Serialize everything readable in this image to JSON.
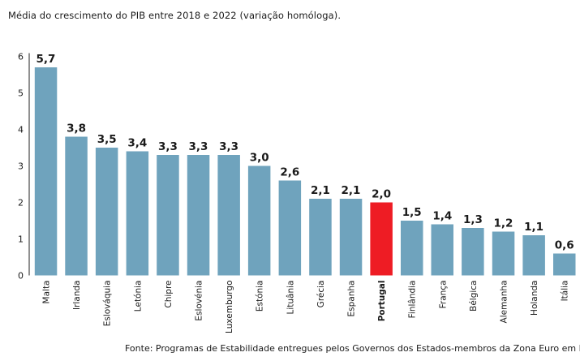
{
  "chart_data": {
    "type": "bar",
    "title": "Média do crescimento do PIB entre 2018 e 2022 (variação homóloga).",
    "categories": [
      "Malta",
      "Irlanda",
      "Eslováquia",
      "Letónia",
      "Chipre",
      "Eslovénia",
      "Luxemburgo",
      "Estónia",
      "Lituânia",
      "Grécia",
      "Espanha",
      "Portugal",
      "Finlândia",
      "França",
      "Bélgica",
      "Alemanha",
      "Holanda",
      "Itália"
    ],
    "values": [
      5.7,
      3.8,
      3.5,
      3.4,
      3.3,
      3.3,
      3.3,
      3.0,
      2.6,
      2.1,
      2.1,
      2.0,
      1.5,
      1.4,
      1.3,
      1.2,
      1.1,
      0.6
    ],
    "value_labels": [
      "5,7",
      "3,8",
      "3,5",
      "3,4",
      "3,3",
      "3,3",
      "3,3",
      "3,0",
      "2,6",
      "2,1",
      "2,1",
      "2,0",
      "1,5",
      "1,4",
      "1,3",
      "1,2",
      "1,1",
      "0,6"
    ],
    "highlight": "Portugal",
    "yticks": [
      "0",
      "1",
      "2",
      "3",
      "4",
      "5",
      "6"
    ],
    "ylim": [
      0,
      6
    ],
    "grid": false,
    "xlabel": "",
    "ylabel": "",
    "colors": {
      "bar": "#6fa3bd",
      "highlight": "#ee1c24",
      "axis": "#222222",
      "text": "#1a1a1a"
    },
    "source": "Fonte: Programas de Estabilidade entregues pelos Governos dos Estados-membros da Zona Euro em Bru"
  }
}
